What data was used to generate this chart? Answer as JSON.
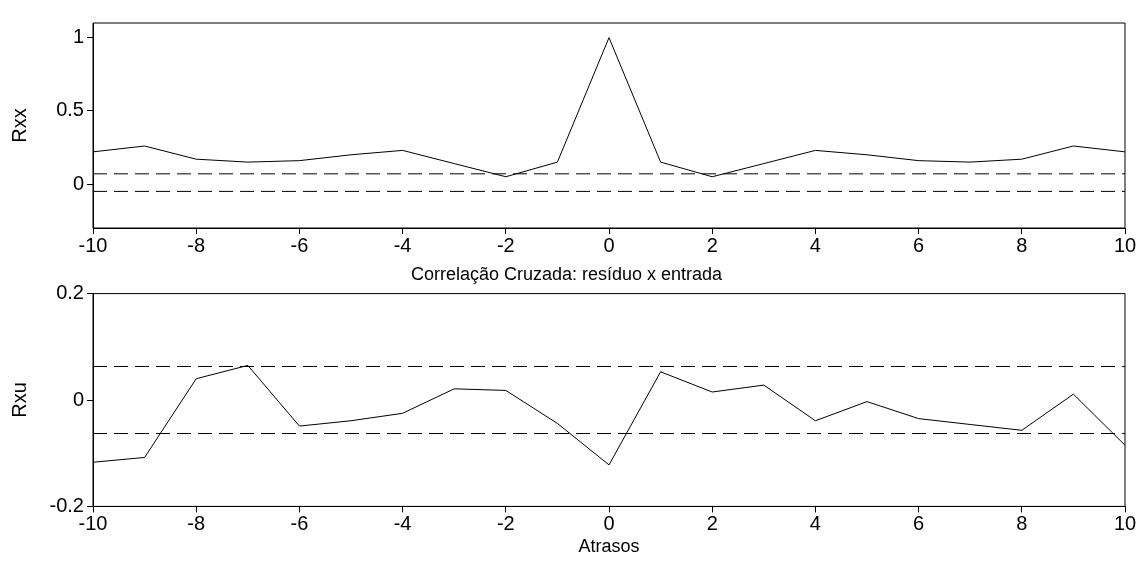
{
  "chart_data": [
    {
      "type": "line",
      "ylabel": "Rxx",
      "x": [
        -10,
        -9,
        -8,
        -7,
        -6,
        -5,
        -4,
        -3,
        -2,
        -1,
        0,
        1,
        2,
        3,
        4,
        5,
        6,
        7,
        8,
        9,
        10
      ],
      "series": [
        {
          "color": "#000000",
          "values": [
            0.22,
            0.26,
            0.17,
            0.15,
            0.16,
            0.2,
            0.23,
            0.14,
            0.05,
            0.15,
            1,
            0.15,
            0.05,
            0.14,
            0.23,
            0.2,
            0.16,
            0.15,
            0.17,
            0.26,
            0.22
          ]
        }
      ],
      "xlim": [
        -10,
        10
      ],
      "xticks": [
        -10,
        -8,
        -6,
        -4,
        -2,
        0,
        2,
        4,
        6,
        8,
        10
      ],
      "ylim": [
        -0.3,
        1.1
      ],
      "yticks": [
        0,
        0.5,
        1
      ],
      "ref_lines": [
        {
          "axis": "y",
          "value": 0.07,
          "line_style": "dashed",
          "color": "#000000"
        },
        {
          "axis": "y",
          "value": -0.05,
          "line_style": "dashed",
          "color": "#000000"
        }
      ],
      "grid": false,
      "legend": false,
      "marker": "none",
      "line_style": "solid"
    },
    {
      "type": "line",
      "title": "Correlação Cruzada: resíduo x entrada",
      "xlabel": "Atrasos",
      "ylabel": "Rxu",
      "x": [
        -10,
        -9,
        -8,
        -7,
        -6,
        -5,
        -4,
        -3,
        -2,
        -1,
        0,
        1,
        2,
        3,
        4,
        5,
        6,
        7,
        8,
        9,
        10
      ],
      "series": [
        {
          "color": "#000000",
          "values": [
            -0.117,
            -0.108,
            0.04,
            0.065,
            -0.049,
            -0.039,
            -0.025,
            0.021,
            0.018,
            -0.044,
            -0.122,
            0.053,
            0.015,
            0.028,
            -0.039,
            -0.003,
            -0.035,
            -0.046,
            -0.057,
            0.011,
            -0.085
          ]
        }
      ],
      "xlim": [
        -10,
        10
      ],
      "xticks": [
        -10,
        -8,
        -6,
        -4,
        -2,
        0,
        2,
        4,
        6,
        8,
        10
      ],
      "ylim": [
        -0.2,
        0.2
      ],
      "yticks": [
        -0.2,
        0,
        0.2
      ],
      "ref_lines": [
        {
          "axis": "y",
          "value": 0.063,
          "line_style": "dashed",
          "color": "#000000"
        },
        {
          "axis": "y",
          "value": -0.063,
          "line_style": "dashed",
          "color": "#000000"
        }
      ],
      "grid": false,
      "legend": false,
      "marker": "none",
      "line_style": "solid"
    }
  ]
}
